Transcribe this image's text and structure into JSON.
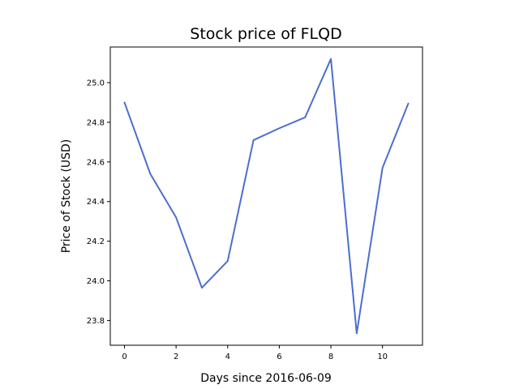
{
  "chart_data": {
    "type": "line",
    "title": "Stock price of FLQD",
    "xlabel": "Days since 2016-06-09",
    "ylabel": "Price of Stock (USD)",
    "x": [
      0,
      1,
      2,
      3,
      4,
      5,
      6,
      7,
      8,
      9,
      10,
      11
    ],
    "series": [
      {
        "values": [
          24.9,
          24.54,
          24.32,
          23.965,
          24.1,
          24.71,
          24.77,
          24.825,
          25.12,
          23.735,
          24.57,
          24.895
        ],
        "color": "#4c6ecf"
      }
    ],
    "xlim": [
      -0.55,
      11.55
    ],
    "ylim": [
      23.675,
      25.18
    ],
    "xticks": [
      0,
      2,
      4,
      6,
      8,
      10
    ],
    "xtick_labels": [
      "0",
      "2",
      "4",
      "6",
      "8",
      "10"
    ],
    "yticks": [
      23.8,
      24.0,
      24.2,
      24.4,
      24.6,
      24.8,
      25.0
    ],
    "ytick_labels": [
      "23.8",
      "24.0",
      "24.2",
      "24.4",
      "24.6",
      "24.8",
      "25.0"
    ],
    "grid": false,
    "legend": "none"
  }
}
